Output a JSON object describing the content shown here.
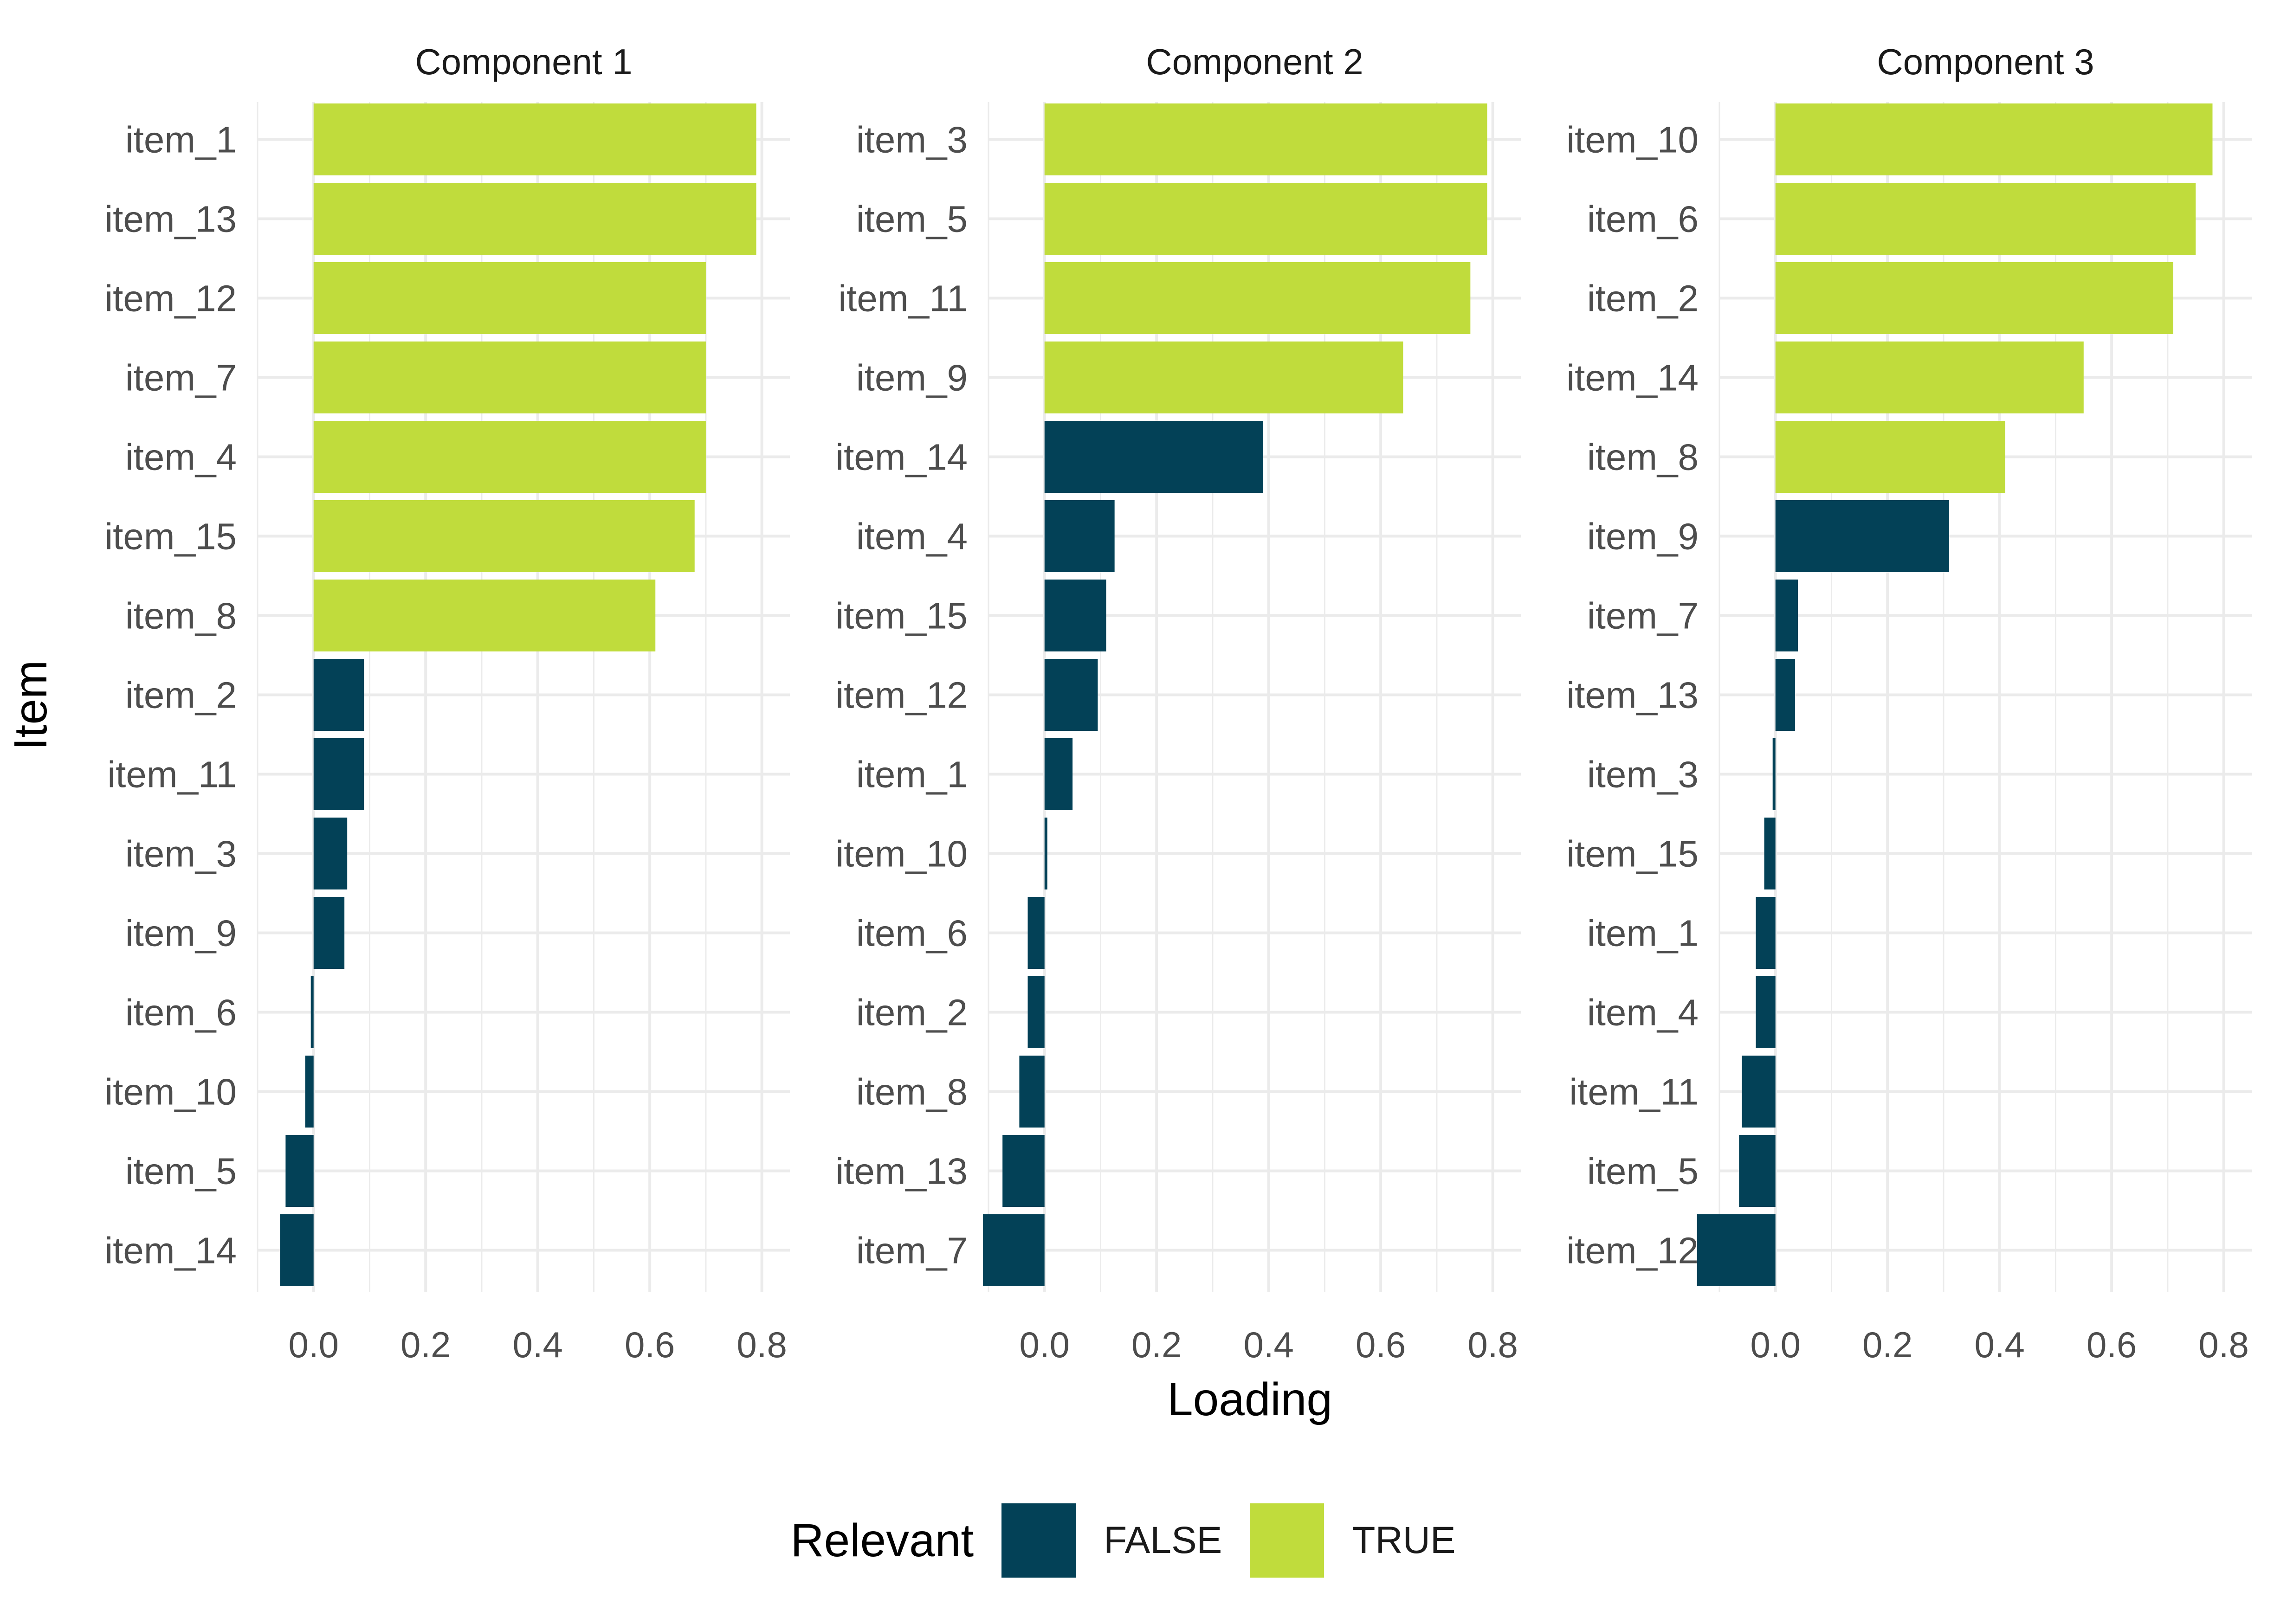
{
  "chart_data": {
    "type": "bar",
    "orientation": "horizontal",
    "ylabel": "Item",
    "xlabel": "Loading",
    "xlim": [
      -0.1,
      0.85
    ],
    "xticks": [
      "0.0",
      "0.2",
      "0.4",
      "0.6",
      "0.8"
    ],
    "grid": true,
    "legend": {
      "title": "Relevant",
      "position": "bottom",
      "entries": [
        {
          "label": "FALSE",
          "color": "#034157"
        },
        {
          "label": "TRUE",
          "color": "#c0dc3c"
        }
      ]
    },
    "panels": [
      {
        "title": "Component 1",
        "categories": [
          "item_1",
          "item_13",
          "item_12",
          "item_7",
          "item_4",
          "item_15",
          "item_8",
          "item_2",
          "item_11",
          "item_3",
          "item_9",
          "item_6",
          "item_10",
          "item_5",
          "item_14"
        ],
        "values": [
          0.79,
          0.79,
          0.7,
          0.7,
          0.7,
          0.68,
          0.61,
          0.09,
          0.09,
          0.06,
          0.055,
          -0.005,
          -0.015,
          -0.05,
          -0.06
        ],
        "relevant": [
          true,
          true,
          true,
          true,
          true,
          true,
          true,
          false,
          false,
          false,
          false,
          false,
          false,
          false,
          false
        ]
      },
      {
        "title": "Component 2",
        "categories": [
          "item_3",
          "item_5",
          "item_11",
          "item_9",
          "item_14",
          "item_4",
          "item_15",
          "item_12",
          "item_1",
          "item_10",
          "item_6",
          "item_2",
          "item_8",
          "item_13",
          "item_7"
        ],
        "values": [
          0.79,
          0.79,
          0.76,
          0.64,
          0.39,
          0.125,
          0.11,
          0.095,
          0.05,
          0.005,
          -0.03,
          -0.03,
          -0.045,
          -0.075,
          -0.11
        ],
        "relevant": [
          true,
          true,
          true,
          true,
          false,
          false,
          false,
          false,
          false,
          false,
          false,
          false,
          false,
          false,
          false
        ]
      },
      {
        "title": "Component 3",
        "categories": [
          "item_10",
          "item_6",
          "item_2",
          "item_14",
          "item_8",
          "item_9",
          "item_7",
          "item_13",
          "item_3",
          "item_15",
          "item_1",
          "item_4",
          "item_11",
          "item_5",
          "item_12"
        ],
        "values": [
          0.78,
          0.75,
          0.71,
          0.55,
          0.41,
          0.31,
          0.04,
          0.035,
          -0.005,
          -0.02,
          -0.035,
          -0.035,
          -0.06,
          -0.065,
          -0.14
        ],
        "relevant": [
          true,
          true,
          true,
          true,
          true,
          false,
          false,
          false,
          false,
          false,
          false,
          false,
          false,
          false,
          false
        ]
      }
    ]
  }
}
